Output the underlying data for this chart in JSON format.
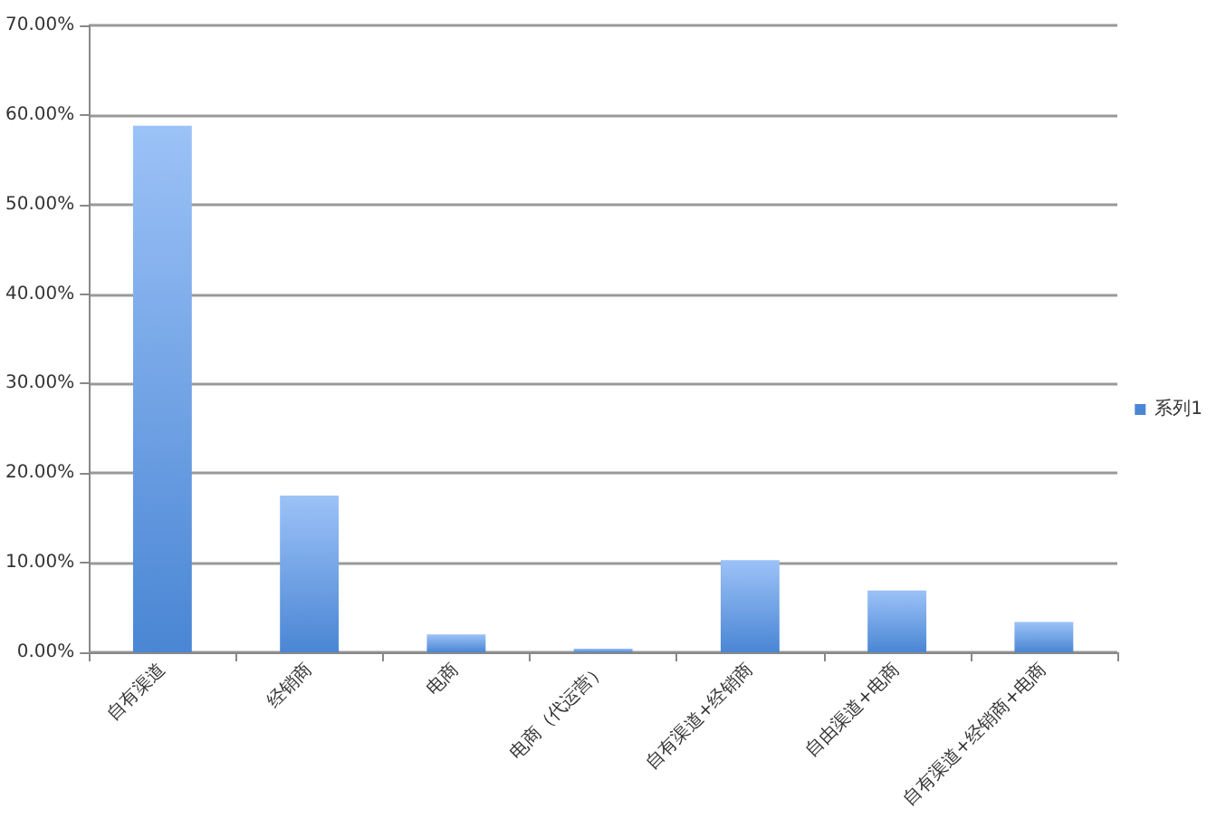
{
  "chart_data": {
    "type": "bar",
    "categories": [
      "自有渠道",
      "经销商",
      "电商",
      "电商（代运营）",
      "自有渠道+经销商",
      "自由渠道+电商",
      "自有渠道+经销商+电商"
    ],
    "series": [
      {
        "name": "系列1",
        "color": "#4a86d4",
        "values": [
          58.8,
          17.5,
          2.0,
          0.4,
          10.3,
          6.9,
          3.4
        ]
      }
    ],
    "ylim": [
      0,
      70
    ],
    "yticks": [
      {
        "value": 0,
        "label": "0.00%"
      },
      {
        "value": 10,
        "label": "10.00%"
      },
      {
        "value": 20,
        "label": "20.00%"
      },
      {
        "value": 30,
        "label": "30.00%"
      },
      {
        "value": 40,
        "label": "40.00%"
      },
      {
        "value": 50,
        "label": "50.00%"
      },
      {
        "value": 60,
        "label": "60.00%"
      },
      {
        "value": 70,
        "label": "70.00%"
      }
    ],
    "grid": "y",
    "legend": "right"
  }
}
